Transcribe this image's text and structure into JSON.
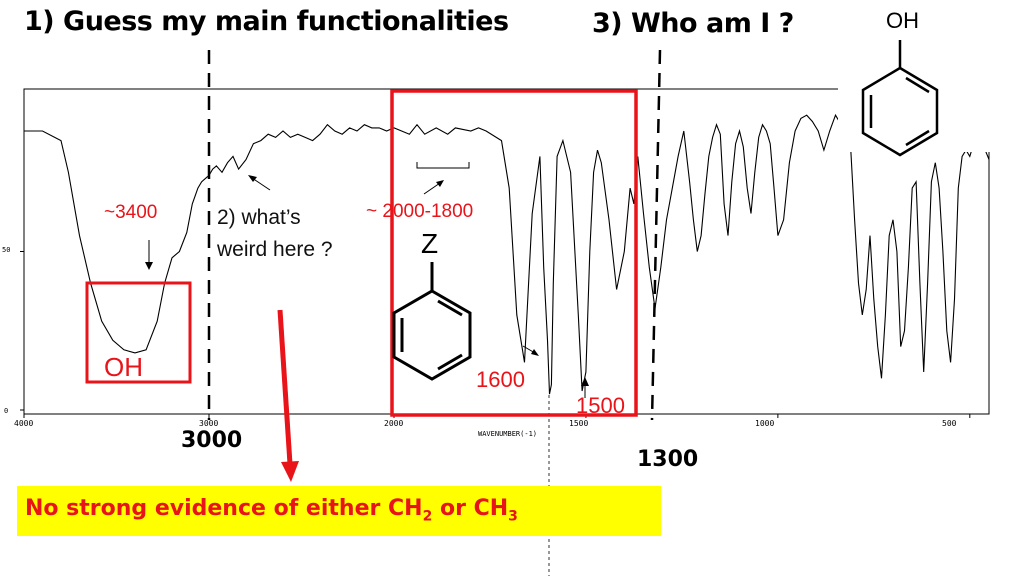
{
  "headings": {
    "q1": "1) Guess my main functionalities",
    "q3": "3) Who am I ?"
  },
  "annotations": {
    "peak_3400": "~3400",
    "question2_line1": "2) what’s",
    "question2_line2": "weird here ?",
    "range_2000_1800": "~ 2000-1800",
    "oh_box": "OH",
    "z_label": "Z",
    "peak_1600": "1600",
    "peak_1500": "1500",
    "marker_3000": "3000",
    "marker_1300": "1300",
    "structure_oh": "OH"
  },
  "callout": {
    "prefix": "No strong evidence of either CH",
    "sub1": "2",
    "middle": " or CH",
    "sub2": "3"
  },
  "colors": {
    "accent_red": "#e8141a",
    "callout_bg": "#ffff00",
    "trace": "#000000"
  },
  "chart_data": {
    "type": "line",
    "title": "",
    "xlabel": "WAVENUMBER(-1)",
    "ylabel": "",
    "x_reversed": true,
    "xlim": [
      4000,
      450
    ],
    "ylim": [
      0,
      100
    ],
    "x_ticks": [
      4000,
      3000,
      2000,
      1500,
      1000,
      500
    ],
    "x_tick_labels": [
      "4000",
      "3000",
      "2000",
      "1500",
      "1000",
      "500"
    ],
    "y_ticks": [
      0,
      50
    ],
    "y_tick_labels": [
      "0",
      "50"
    ],
    "grid": false,
    "series": [
      {
        "x": [
          4000,
          3900,
          3800,
          3760,
          3700,
          3640,
          3580,
          3520,
          3460,
          3400,
          3340,
          3280,
          3240,
          3200,
          3160,
          3120,
          3090,
          3060,
          3040,
          3020,
          3000,
          2980,
          2960,
          2930,
          2900,
          2870,
          2840,
          2800,
          2760,
          2720,
          2680,
          2640,
          2600,
          2560,
          2520,
          2480,
          2440,
          2400,
          2360,
          2320,
          2280,
          2240,
          2200,
          2160,
          2120,
          2080,
          2040,
          2000,
          1960,
          1940,
          1920,
          1890,
          1860,
          1840,
          1800,
          1780,
          1760,
          1720,
          1700,
          1680,
          1660,
          1640,
          1620,
          1610,
          1600,
          1595,
          1590,
          1585,
          1575,
          1560,
          1540,
          1520,
          1510,
          1500,
          1490,
          1480,
          1470,
          1460,
          1440,
          1420,
          1400,
          1385,
          1375,
          1365,
          1350,
          1335,
          1320,
          1305,
          1290,
          1275,
          1260,
          1245,
          1230,
          1220,
          1210,
          1200,
          1190,
          1180,
          1170,
          1160,
          1150,
          1140,
          1130,
          1120,
          1110,
          1100,
          1090,
          1080,
          1070,
          1060,
          1050,
          1040,
          1030,
          1020,
          1010,
          1000,
          985,
          970,
          955,
          940,
          925,
          910,
          895,
          880,
          865,
          850,
          835,
          820,
          810,
          800,
          790,
          780,
          770,
          760,
          750,
          740,
          730,
          720,
          710,
          700,
          690,
          680,
          670,
          660,
          650,
          640,
          630,
          620,
          610,
          600,
          590,
          580,
          570,
          560,
          550,
          540,
          530,
          520,
          510,
          500,
          490,
          480,
          470,
          460,
          450
        ],
        "y": [
          88,
          88,
          85,
          75,
          55,
          40,
          28,
          22,
          19,
          18,
          19,
          28,
          40,
          48,
          50,
          56,
          65,
          70,
          72,
          73,
          74,
          76,
          77,
          75,
          78,
          80,
          76,
          79,
          84,
          85,
          87,
          86,
          88,
          86,
          87,
          86,
          85,
          87,
          90,
          88,
          87,
          89,
          88,
          90,
          89,
          89,
          88,
          89,
          87,
          90,
          87,
          89,
          87,
          89,
          88,
          89,
          88,
          85,
          70,
          30,
          15,
          62,
          80,
          45,
          22,
          5,
          8,
          40,
          80,
          85,
          75,
          30,
          6,
          12,
          50,
          75,
          82,
          78,
          60,
          38,
          50,
          70,
          65,
          80,
          62,
          45,
          32,
          45,
          60,
          70,
          80,
          88,
          72,
          60,
          50,
          55,
          68,
          80,
          86,
          90,
          87,
          65,
          55,
          72,
          84,
          88,
          83,
          70,
          62,
          75,
          86,
          90,
          88,
          84,
          70,
          55,
          60,
          78,
          88,
          92,
          93,
          91,
          88,
          82,
          88,
          93,
          90,
          87,
          82,
          60,
          40,
          30,
          38,
          55,
          35,
          20,
          10,
          30,
          55,
          60,
          50,
          20,
          25,
          45,
          70,
          72,
          40,
          12,
          40,
          72,
          78,
          70,
          50,
          25,
          15,
          35,
          70,
          80,
          82,
          80,
          84,
          90,
          86,
          82,
          79
        ]
      }
    ]
  }
}
